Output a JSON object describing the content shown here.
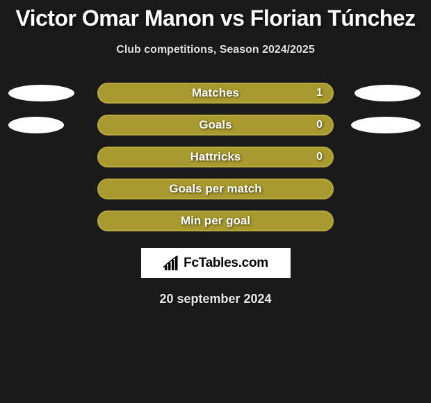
{
  "title": "Victor Omar Manon vs Florian Túnchez",
  "subtitle": "Club competitions, Season 2024/2025",
  "date": "20 september 2024",
  "logo_text": "FcTables.com",
  "colors": {
    "background": "#1a1a1a",
    "title": "#ffffff",
    "subtitle": "#e0e0e0",
    "bar_fill": "#a89a2e",
    "bar_border": "#b8aa3e",
    "ellipse": "#ffffff",
    "logo_bg": "#ffffff",
    "logo_text": "#000000"
  },
  "rows": [
    {
      "label": "Matches",
      "value": "1",
      "left_ellipse_width": 95,
      "right_ellipse_width": 95,
      "show_value": true,
      "left_visible": true,
      "right_visible": true
    },
    {
      "label": "Goals",
      "value": "0",
      "left_ellipse_width": 80,
      "right_ellipse_width": 100,
      "show_value": true,
      "left_visible": true,
      "right_visible": true
    },
    {
      "label": "Hattricks",
      "value": "0",
      "left_ellipse_width": 0,
      "right_ellipse_width": 0,
      "show_value": true,
      "left_visible": false,
      "right_visible": false
    },
    {
      "label": "Goals per match",
      "value": "",
      "left_ellipse_width": 0,
      "right_ellipse_width": 0,
      "show_value": false,
      "left_visible": false,
      "right_visible": false
    },
    {
      "label": "Min per goal",
      "value": "",
      "left_ellipse_width": 0,
      "right_ellipse_width": 0,
      "show_value": false,
      "left_visible": false,
      "right_visible": false
    }
  ]
}
